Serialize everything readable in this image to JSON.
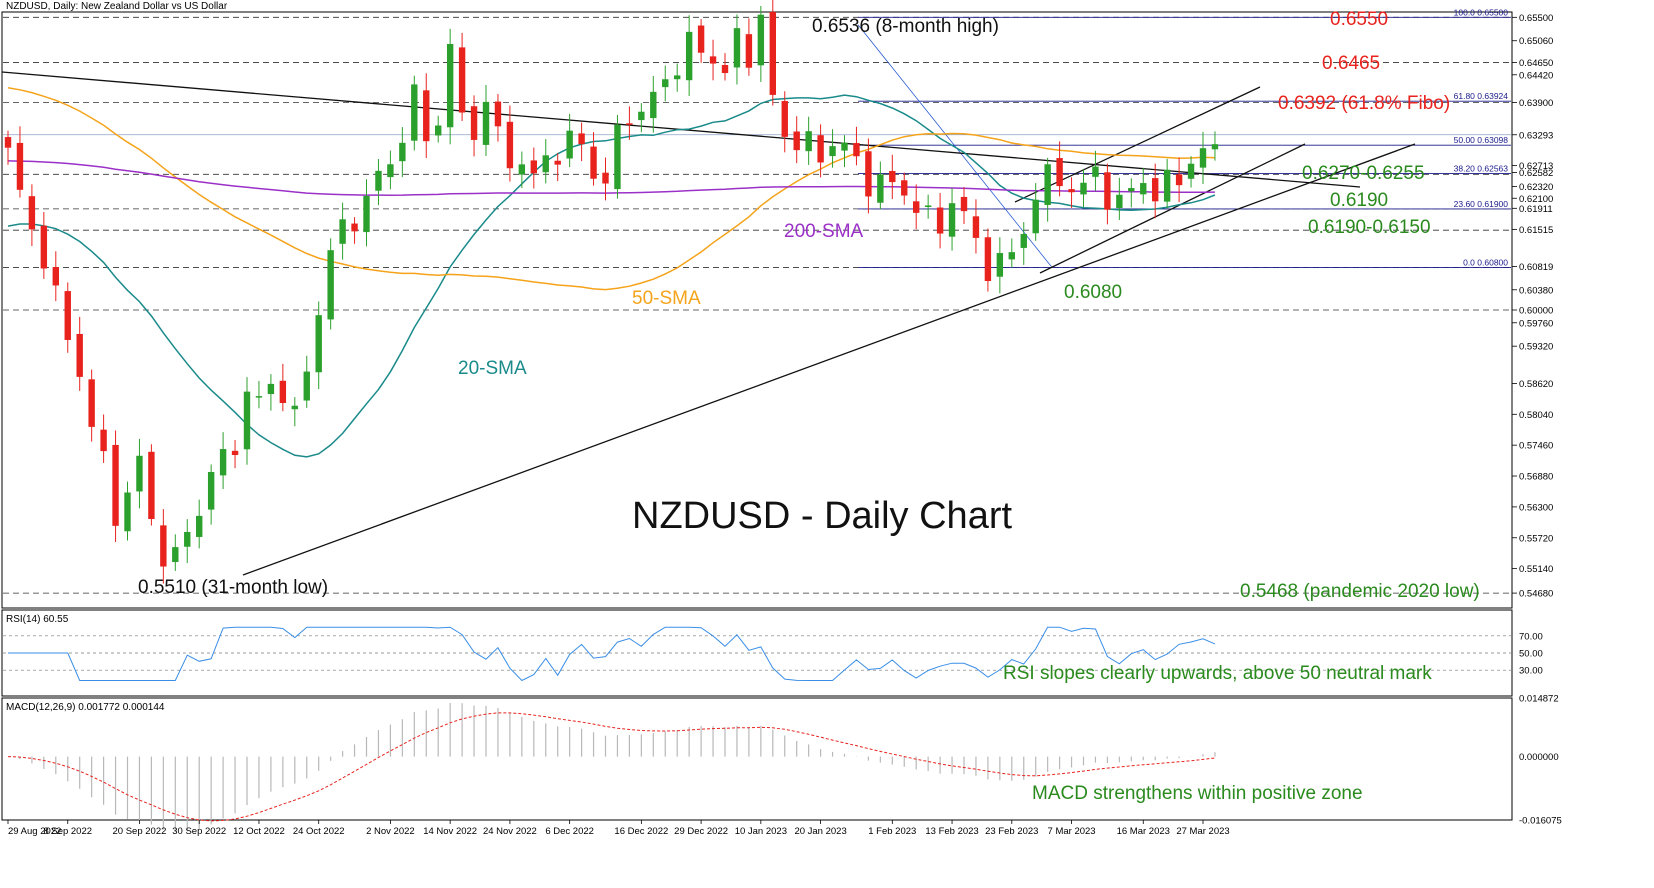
{
  "header": {
    "main": "NZDUSD, Daily:  New Zealand Dollar vs US Dollar",
    "rsi": "RSI(14) 60.55",
    "macd": "MACD(12,26,9) 0.001772 0.000144"
  },
  "chart_data": [
    {
      "type": "candlestick",
      "title": "NZDUSD - Daily Chart",
      "ylim": [
        0.544,
        0.656
      ],
      "x_ticks": [
        "29 Aug 2022",
        "8 Sep 2022",
        "20 Sep 2022",
        "30 Sep 2022",
        "12 Oct 2022",
        "24 Oct 2022",
        "2 Nov 2022",
        "14 Nov 2022",
        "24 Nov 2022",
        "6 Dec 2022",
        "16 Dec 2022",
        "29 Dec 2022",
        "10 Jan 2023",
        "20 Jan 2023",
        "1 Feb 2023",
        "13 Feb 2023",
        "23 Feb 2023",
        "7 Mar 2023",
        "16 Mar 2023",
        "27 Mar 2023"
      ],
      "y_ticks": [
        "0.65500",
        "0.65060",
        "0.64650",
        "0.64420",
        "0.63900",
        "0.63293",
        "0.62713",
        "0.62582",
        "0.62320",
        "0.62100",
        "0.61911",
        "0.61515",
        "0.60819",
        "0.60380",
        "0.60000",
        "0.59760",
        "0.59320",
        "0.58620",
        "0.58040",
        "0.57460",
        "0.56880",
        "0.56300",
        "0.55720",
        "0.55140",
        "0.54680"
      ],
      "close_path": [
        0.629,
        0.622,
        0.615,
        0.6105,
        0.601,
        0.596,
        0.588,
        0.578,
        0.571,
        0.563,
        0.564,
        0.572,
        0.561,
        0.554,
        0.552,
        0.56,
        0.562,
        0.569,
        0.572,
        0.576,
        0.583,
        0.583,
        0.587,
        0.584,
        0.579,
        0.59,
        0.6,
        0.61,
        0.616,
        0.6175,
        0.62,
        0.625,
        0.629,
        0.632,
        0.64,
        0.633,
        0.636,
        0.648,
        0.637,
        0.634,
        0.638,
        0.633,
        0.629,
        0.627,
        0.624,
        0.63,
        0.629,
        0.631,
        0.632,
        0.626,
        0.623,
        0.633,
        0.638,
        0.636,
        0.64,
        0.644,
        0.646,
        0.649,
        0.65,
        0.647,
        0.644,
        0.651,
        0.649,
        0.6535,
        0.64,
        0.633,
        0.632,
        0.63,
        0.63,
        0.631,
        0.631,
        0.627,
        0.625,
        0.623,
        0.624,
        0.622,
        0.62,
        0.616,
        0.617,
        0.62,
        0.618,
        0.612,
        0.609,
        0.608,
        0.611,
        0.615,
        0.622,
        0.624,
        0.626,
        0.622,
        0.623,
        0.626,
        0.622,
        0.619,
        0.623,
        0.625,
        0.621,
        0.6235,
        0.626,
        0.6275,
        0.629,
        0.631
      ],
      "moving_averages": [
        {
          "name": "20-SMA",
          "color": "#1a8a8a"
        },
        {
          "name": "50-SMA",
          "color": "#f5a31a"
        },
        {
          "name": "200-SMA",
          "color": "#9b30c8"
        }
      ],
      "fibonacci": [
        {
          "ratio": "100.0",
          "level": 0.655
        },
        {
          "ratio": "61.80",
          "level": 0.63924
        },
        {
          "ratio": "50.00",
          "level": 0.63098
        },
        {
          "ratio": "38.20",
          "level": 0.62563
        },
        {
          "ratio": "23.60",
          "level": 0.619
        },
        {
          "ratio": "0.0",
          "level": 0.608
        }
      ],
      "annotations": [
        {
          "text": "0.6536 (8-month high)",
          "color": "#111111"
        },
        {
          "text": "0.6550",
          "color": "#e8231e"
        },
        {
          "text": "0.6465",
          "color": "#e8231e"
        },
        {
          "text": "0.6392 (61.8% Fibo)",
          "color": "#e8231e"
        },
        {
          "text": "0.6270-0.6255",
          "color": "#2a8a1e"
        },
        {
          "text": "0.6190",
          "color": "#2a8a1e"
        },
        {
          "text": "0.6190-0.6150",
          "color": "#2a8a1e"
        },
        {
          "text": "0.6080",
          "color": "#2a8a1e"
        },
        {
          "text": "0.5510 (31-month low)",
          "color": "#111111"
        },
        {
          "text": "0.5468 (pandemic 2020 low)",
          "color": "#2a8a1e"
        },
        {
          "text": "200-SMA",
          "color": "#9b30c8"
        },
        {
          "text": "50-SMA",
          "color": "#f5a31a"
        },
        {
          "text": "20-SMA",
          "color": "#1a8a8a"
        }
      ],
      "colors": {
        "up": "#2ca02c",
        "down": "#e8231e"
      }
    },
    {
      "type": "line",
      "title": "RSI(14) 60.55",
      "ylim": [
        0,
        100
      ],
      "y_ticks": [
        "70.00",
        "50.00",
        "30.00"
      ],
      "levels": [
        70,
        50,
        30
      ],
      "last_value": 60.55,
      "annotation": "RSI slopes clearly upwards, above 50 neutral mark",
      "color": "#3a8ee6"
    },
    {
      "type": "bar",
      "title": "MACD(12,26,9) 0.001772 0.000144",
      "y_ticks": [
        "0.014872",
        "0.000000",
        "-0.016075"
      ],
      "ylim": [
        -0.016075,
        0.014872
      ],
      "macd_last": 0.001772,
      "signal_last": 0.000144,
      "annotation": "MACD strengthens within positive zone",
      "signal_color": "#e8231e"
    }
  ]
}
